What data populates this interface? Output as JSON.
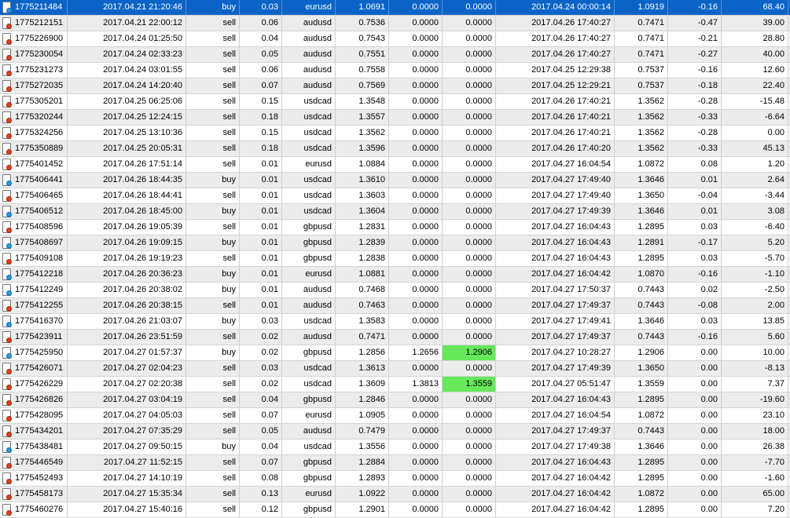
{
  "colors": {
    "selected_row": "#0a64c8",
    "tp_hit": "#66e85a",
    "sell_icon": "#e0401c",
    "buy_icon": "#2a9ae0"
  },
  "selected_index": 0,
  "columns": [
    "ticket",
    "open_time",
    "type",
    "size",
    "symbol",
    "open_price",
    "sl",
    "tp",
    "close_time",
    "close_price",
    "swap",
    "profit"
  ],
  "rows": [
    {
      "ticket": "1775211484",
      "open_time": "2017.04.21 21:20:46",
      "type": "buy",
      "size": "0.03",
      "symbol": "eurusd",
      "open_price": "1.0691",
      "sl": "0.0000",
      "tp": "0.0000",
      "close_time": "2017.04.24 00:00:14",
      "close_price": "1.0919",
      "swap": "-0.16",
      "profit": "68.40"
    },
    {
      "ticket": "1775212151",
      "open_time": "2017.04.21 22:00:12",
      "type": "sell",
      "size": "0.06",
      "symbol": "audusd",
      "open_price": "0.7536",
      "sl": "0.0000",
      "tp": "0.0000",
      "close_time": "2017.04.26 17:40:27",
      "close_price": "0.7471",
      "swap": "-0.47",
      "profit": "39.00"
    },
    {
      "ticket": "1775226900",
      "open_time": "2017.04.24 01:25:50",
      "type": "sell",
      "size": "0.04",
      "symbol": "audusd",
      "open_price": "0.7543",
      "sl": "0.0000",
      "tp": "0.0000",
      "close_time": "2017.04.26 17:40:27",
      "close_price": "0.7471",
      "swap": "-0.21",
      "profit": "28.80"
    },
    {
      "ticket": "1775230054",
      "open_time": "2017.04.24 02:33:23",
      "type": "sell",
      "size": "0.05",
      "symbol": "audusd",
      "open_price": "0.7551",
      "sl": "0.0000",
      "tp": "0.0000",
      "close_time": "2017.04.26 17:40:27",
      "close_price": "0.7471",
      "swap": "-0.27",
      "profit": "40.00"
    },
    {
      "ticket": "1775231273",
      "open_time": "2017.04.24 03:01:55",
      "type": "sell",
      "size": "0.06",
      "symbol": "audusd",
      "open_price": "0.7558",
      "sl": "0.0000",
      "tp": "0.0000",
      "close_time": "2017.04.25 12:29:38",
      "close_price": "0.7537",
      "swap": "-0.16",
      "profit": "12.60"
    },
    {
      "ticket": "1775272035",
      "open_time": "2017.04.24 14:20:40",
      "type": "sell",
      "size": "0.07",
      "symbol": "audusd",
      "open_price": "0.7569",
      "sl": "0.0000",
      "tp": "0.0000",
      "close_time": "2017.04.25 12:29:21",
      "close_price": "0.7537",
      "swap": "-0.18",
      "profit": "22.40"
    },
    {
      "ticket": "1775305201",
      "open_time": "2017.04.25 06:25:06",
      "type": "sell",
      "size": "0.15",
      "symbol": "usdcad",
      "open_price": "1.3548",
      "sl": "0.0000",
      "tp": "0.0000",
      "close_time": "2017.04.26 17:40:21",
      "close_price": "1.3562",
      "swap": "-0.28",
      "profit": "-15.48"
    },
    {
      "ticket": "1775320244",
      "open_time": "2017.04.25 12:24:15",
      "type": "sell",
      "size": "0.18",
      "symbol": "usdcad",
      "open_price": "1.3557",
      "sl": "0.0000",
      "tp": "0.0000",
      "close_time": "2017.04.26 17:40:21",
      "close_price": "1.3562",
      "swap": "-0.33",
      "profit": "-6.64"
    },
    {
      "ticket": "1775324256",
      "open_time": "2017.04.25 13:10:36",
      "type": "sell",
      "size": "0.15",
      "symbol": "usdcad",
      "open_price": "1.3562",
      "sl": "0.0000",
      "tp": "0.0000",
      "close_time": "2017.04.26 17:40:21",
      "close_price": "1.3562",
      "swap": "-0.28",
      "profit": "0.00"
    },
    {
      "ticket": "1775350889",
      "open_time": "2017.04.25 20:05:31",
      "type": "sell",
      "size": "0.18",
      "symbol": "usdcad",
      "open_price": "1.3596",
      "sl": "0.0000",
      "tp": "0.0000",
      "close_time": "2017.04.26 17:40:20",
      "close_price": "1.3562",
      "swap": "-0.33",
      "profit": "45.13"
    },
    {
      "ticket": "1775401452",
      "open_time": "2017.04.26 17:51:14",
      "type": "sell",
      "size": "0.01",
      "symbol": "eurusd",
      "open_price": "1.0884",
      "sl": "0.0000",
      "tp": "0.0000",
      "close_time": "2017.04.27 16:04:54",
      "close_price": "1.0872",
      "swap": "0.08",
      "profit": "1.20"
    },
    {
      "ticket": "1775406441",
      "open_time": "2017.04.26 18:44:35",
      "type": "buy",
      "size": "0.01",
      "symbol": "usdcad",
      "open_price": "1.3610",
      "sl": "0.0000",
      "tp": "0.0000",
      "close_time": "2017.04.27 17:49:40",
      "close_price": "1.3646",
      "swap": "0.01",
      "profit": "2.64"
    },
    {
      "ticket": "1775406465",
      "open_time": "2017.04.26 18:44:41",
      "type": "sell",
      "size": "0.01",
      "symbol": "usdcad",
      "open_price": "1.3603",
      "sl": "0.0000",
      "tp": "0.0000",
      "close_time": "2017.04.27 17:49:40",
      "close_price": "1.3650",
      "swap": "-0.04",
      "profit": "-3.44"
    },
    {
      "ticket": "1775406512",
      "open_time": "2017.04.26 18:45:00",
      "type": "buy",
      "size": "0.01",
      "symbol": "usdcad",
      "open_price": "1.3604",
      "sl": "0.0000",
      "tp": "0.0000",
      "close_time": "2017.04.27 17:49:39",
      "close_price": "1.3646",
      "swap": "0.01",
      "profit": "3.08"
    },
    {
      "ticket": "1775408596",
      "open_time": "2017.04.26 19:05:39",
      "type": "sell",
      "size": "0.01",
      "symbol": "gbpusd",
      "open_price": "1.2831",
      "sl": "0.0000",
      "tp": "0.0000",
      "close_time": "2017.04.27 16:04:43",
      "close_price": "1.2895",
      "swap": "0.03",
      "profit": "-6.40"
    },
    {
      "ticket": "1775408697",
      "open_time": "2017.04.26 19:09:15",
      "type": "buy",
      "size": "0.01",
      "symbol": "gbpusd",
      "open_price": "1.2839",
      "sl": "0.0000",
      "tp": "0.0000",
      "close_time": "2017.04.27 16:04:43",
      "close_price": "1.2891",
      "swap": "-0.17",
      "profit": "5.20"
    },
    {
      "ticket": "1775409108",
      "open_time": "2017.04.26 19:19:23",
      "type": "sell",
      "size": "0.01",
      "symbol": "gbpusd",
      "open_price": "1.2838",
      "sl": "0.0000",
      "tp": "0.0000",
      "close_time": "2017.04.27 16:04:43",
      "close_price": "1.2895",
      "swap": "0.03",
      "profit": "-5.70"
    },
    {
      "ticket": "1775412218",
      "open_time": "2017.04.26 20:36:23",
      "type": "buy",
      "size": "0.01",
      "symbol": "eurusd",
      "open_price": "1.0881",
      "sl": "0.0000",
      "tp": "0.0000",
      "close_time": "2017.04.27 16:04:42",
      "close_price": "1.0870",
      "swap": "-0.16",
      "profit": "-1.10"
    },
    {
      "ticket": "1775412249",
      "open_time": "2017.04.26 20:38:02",
      "type": "buy",
      "size": "0.01",
      "symbol": "audusd",
      "open_price": "0.7468",
      "sl": "0.0000",
      "tp": "0.0000",
      "close_time": "2017.04.27 17:50:37",
      "close_price": "0.7443",
      "swap": "0.02",
      "profit": "-2.50"
    },
    {
      "ticket": "1775412255",
      "open_time": "2017.04.26 20:38:15",
      "type": "sell",
      "size": "0.01",
      "symbol": "audusd",
      "open_price": "0.7463",
      "sl": "0.0000",
      "tp": "0.0000",
      "close_time": "2017.04.27 17:49:37",
      "close_price": "0.7443",
      "swap": "-0.08",
      "profit": "2.00"
    },
    {
      "ticket": "1775416370",
      "open_time": "2017.04.26 21:03:07",
      "type": "buy",
      "size": "0.03",
      "symbol": "usdcad",
      "open_price": "1.3583",
      "sl": "0.0000",
      "tp": "0.0000",
      "close_time": "2017.04.27 17:49:41",
      "close_price": "1.3646",
      "swap": "0.03",
      "profit": "13.85"
    },
    {
      "ticket": "1775423911",
      "open_time": "2017.04.26 23:51:59",
      "type": "sell",
      "size": "0.02",
      "symbol": "audusd",
      "open_price": "0.7471",
      "sl": "0.0000",
      "tp": "0.0000",
      "close_time": "2017.04.27 17:49:37",
      "close_price": "0.7443",
      "swap": "-0.16",
      "profit": "5.60"
    },
    {
      "ticket": "1775425950",
      "open_time": "2017.04.27 01:57:37",
      "type": "buy",
      "size": "0.02",
      "symbol": "gbpusd",
      "open_price": "1.2856",
      "sl": "1.2656",
      "tp": "1.2906",
      "tp_hit": true,
      "close_time": "2017.04.27 10:28:27",
      "close_price": "1.2906",
      "swap": "0.00",
      "profit": "10.00"
    },
    {
      "ticket": "1775426071",
      "open_time": "2017.04.27 02:04:23",
      "type": "sell",
      "size": "0.03",
      "symbol": "usdcad",
      "open_price": "1.3613",
      "sl": "0.0000",
      "tp": "0.0000",
      "close_time": "2017.04.27 17:49:39",
      "close_price": "1.3650",
      "swap": "0.00",
      "profit": "-8.13"
    },
    {
      "ticket": "1775426229",
      "open_time": "2017.04.27 02:20:38",
      "type": "sell",
      "size": "0.02",
      "symbol": "usdcad",
      "open_price": "1.3609",
      "sl": "1.3813",
      "tp": "1.3559",
      "tp_hit": true,
      "close_time": "2017.04.27 05:51:47",
      "close_price": "1.3559",
      "swap": "0.00",
      "profit": "7.37"
    },
    {
      "ticket": "1775426826",
      "open_time": "2017.04.27 03:04:19",
      "type": "sell",
      "size": "0.04",
      "symbol": "gbpusd",
      "open_price": "1.2846",
      "sl": "0.0000",
      "tp": "0.0000",
      "close_time": "2017.04.27 16:04:43",
      "close_price": "1.2895",
      "swap": "0.00",
      "profit": "-19.60"
    },
    {
      "ticket": "1775428095",
      "open_time": "2017.04.27 04:05:03",
      "type": "sell",
      "size": "0.07",
      "symbol": "eurusd",
      "open_price": "1.0905",
      "sl": "0.0000",
      "tp": "0.0000",
      "close_time": "2017.04.27 16:04:54",
      "close_price": "1.0872",
      "swap": "0.00",
      "profit": "23.10"
    },
    {
      "ticket": "1775434201",
      "open_time": "2017.04.27 07:35:29",
      "type": "sell",
      "size": "0.05",
      "symbol": "audusd",
      "open_price": "0.7479",
      "sl": "0.0000",
      "tp": "0.0000",
      "close_time": "2017.04.27 17:49:37",
      "close_price": "0.7443",
      "swap": "0.00",
      "profit": "18.00"
    },
    {
      "ticket": "1775438481",
      "open_time": "2017.04.27 09:50:15",
      "type": "buy",
      "size": "0.04",
      "symbol": "usdcad",
      "open_price": "1.3556",
      "sl": "0.0000",
      "tp": "0.0000",
      "close_time": "2017.04.27 17:49:38",
      "close_price": "1.3646",
      "swap": "0.00",
      "profit": "26.38"
    },
    {
      "ticket": "1775446549",
      "open_time": "2017.04.27 11:52:15",
      "type": "sell",
      "size": "0.07",
      "symbol": "gbpusd",
      "open_price": "1.2884",
      "sl": "0.0000",
      "tp": "0.0000",
      "close_time": "2017.04.27 16:04:43",
      "close_price": "1.2895",
      "swap": "0.00",
      "profit": "-7.70"
    },
    {
      "ticket": "1775452493",
      "open_time": "2017.04.27 14:10:19",
      "type": "sell",
      "size": "0.08",
      "symbol": "gbpusd",
      "open_price": "1.2893",
      "sl": "0.0000",
      "tp": "0.0000",
      "close_time": "2017.04.27 16:04:42",
      "close_price": "1.2895",
      "swap": "0.00",
      "profit": "-1.60"
    },
    {
      "ticket": "1775458173",
      "open_time": "2017.04.27 15:35:34",
      "type": "sell",
      "size": "0.13",
      "symbol": "eurusd",
      "open_price": "1.0922",
      "sl": "0.0000",
      "tp": "0.0000",
      "close_time": "2017.04.27 16:04:42",
      "close_price": "1.0872",
      "swap": "0.00",
      "profit": "65.00"
    },
    {
      "ticket": "1775460276",
      "open_time": "2017.04.27 15:40:16",
      "type": "sell",
      "size": "0.12",
      "symbol": "gbpusd",
      "open_price": "1.2901",
      "sl": "0.0000",
      "tp": "0.0000",
      "close_time": "2017.04.27 16:04:42",
      "close_price": "1.2895",
      "swap": "0.00",
      "profit": "7.20"
    }
  ]
}
